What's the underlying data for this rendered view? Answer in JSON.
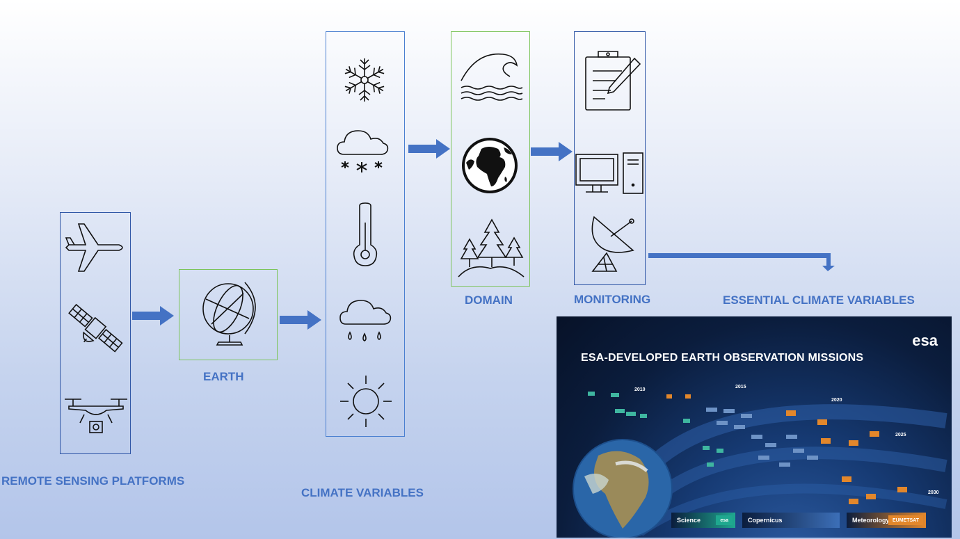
{
  "labels": {
    "remote_sensing": "REMOTE SENSING PLATFORMS",
    "earth": "EARTH",
    "climate_variables": "CLIMATE VARIABLES",
    "domain": "DOMAIN",
    "monitoring": "MONITORING",
    "ecv": "ESSENTIAL CLIMATE VARIABLES"
  },
  "icons": {
    "platforms": [
      "airplane-icon",
      "satellite-icon",
      "drone-icon"
    ],
    "earth": [
      "globe-icon"
    ],
    "climate": [
      "snowflake-icon",
      "snow-cloud-icon",
      "thermometer-icon",
      "rain-cloud-icon",
      "sun-icon"
    ],
    "domain": [
      "wave-icon",
      "earth-africa-icon",
      "forest-icon"
    ],
    "monitoring": [
      "clipboard-icon",
      "computer-icon",
      "satellite-dish-icon"
    ]
  },
  "poster": {
    "title": "ESA-DEVELOPED EARTH OBSERVATION MISSIONS",
    "logo": "esa",
    "years": [
      "2010",
      "2015",
      "2020",
      "2025",
      "2030"
    ],
    "legend": [
      {
        "label": "Science",
        "tag": "esa",
        "color": "#1fa88f"
      },
      {
        "label": "Copernicus",
        "tag": "",
        "color": "#3c6fb8"
      },
      {
        "label": "Meteorology",
        "tag": "EUMETSAT",
        "color": "#e3872b"
      }
    ]
  },
  "colors": {
    "accent_blue": "#4472c4",
    "box_blue": "#2f56a6",
    "box_green": "#7cc45a"
  }
}
